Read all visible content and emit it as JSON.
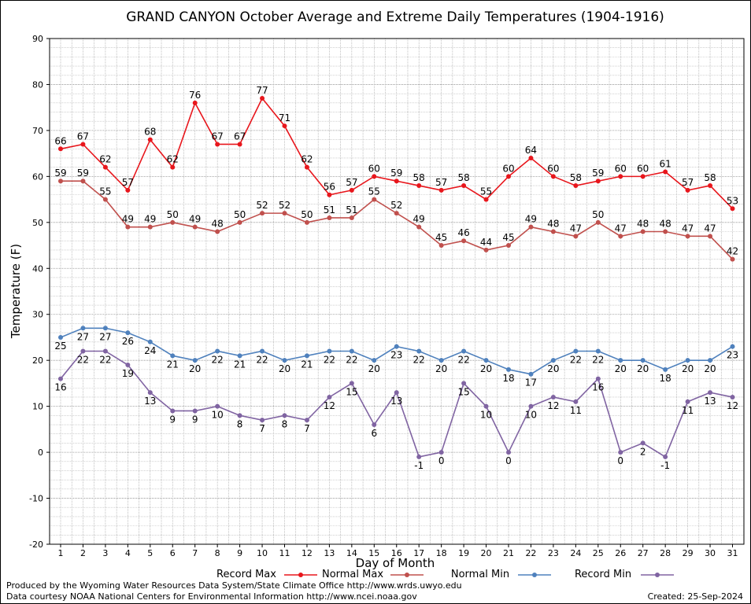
{
  "chart_data": {
    "type": "line",
    "title": "GRAND CANYON October Average and Extreme Daily Temperatures (1904-1916)",
    "xlabel": "Day of Month",
    "ylabel": "Temperature (F)",
    "ylim": [
      -20,
      90
    ],
    "yticks": [
      "-20",
      "-10",
      "0",
      "10",
      "20",
      "30",
      "40",
      "50",
      "60",
      "70",
      "80",
      "90"
    ],
    "x": [
      "1",
      "2",
      "3",
      "4",
      "5",
      "6",
      "7",
      "8",
      "9",
      "10",
      "11",
      "12",
      "13",
      "14",
      "15",
      "16",
      "17",
      "18",
      "19",
      "20",
      "21",
      "22",
      "23",
      "24",
      "25",
      "26",
      "27",
      "28",
      "29",
      "30",
      "31"
    ],
    "grid": true,
    "legend_placement": "bottom",
    "series": [
      {
        "name": "Record Max",
        "color": "#e8161c",
        "values": [
          66,
          67,
          62,
          57,
          68,
          62,
          76,
          67,
          67,
          77,
          71,
          62,
          56,
          57,
          60,
          59,
          58,
          57,
          58,
          55,
          60,
          64,
          60,
          58,
          59,
          60,
          60,
          61,
          57,
          58,
          53
        ]
      },
      {
        "name": "Normal Max",
        "color": "#c0504d",
        "values": [
          59,
          59,
          55,
          49,
          49,
          50,
          49,
          48,
          50,
          52,
          52,
          50,
          51,
          51,
          55,
          52,
          49,
          45,
          46,
          44,
          45,
          49,
          48,
          47,
          50,
          47,
          48,
          48,
          47,
          47,
          42
        ]
      },
      {
        "name": "Normal Min",
        "color": "#4f81bd",
        "values": [
          25,
          27,
          27,
          26,
          24,
          21,
          20,
          22,
          21,
          22,
          20,
          21,
          22,
          22,
          20,
          23,
          22,
          20,
          22,
          20,
          18,
          17,
          20,
          22,
          22,
          20,
          20,
          18,
          20,
          20,
          23
        ]
      },
      {
        "name": "Record Min",
        "color": "#8064a2",
        "values": [
          16,
          22,
          22,
          19,
          13,
          9,
          9,
          10,
          8,
          7,
          8,
          7,
          12,
          15,
          6,
          13,
          -1,
          0,
          15,
          10,
          0,
          10,
          12,
          11,
          16,
          0,
          2,
          -1,
          11,
          13,
          12
        ]
      }
    ]
  },
  "footer": {
    "line1": "Produced by the Wyoming Water Resources Data System/State Climate Office http://www.wrds.uwyo.edu",
    "line2": "Data courtesy NOAA National Centers for Environmental Information http://www.ncei.noaa.gov",
    "created": "Created:  25-Sep-2024"
  }
}
